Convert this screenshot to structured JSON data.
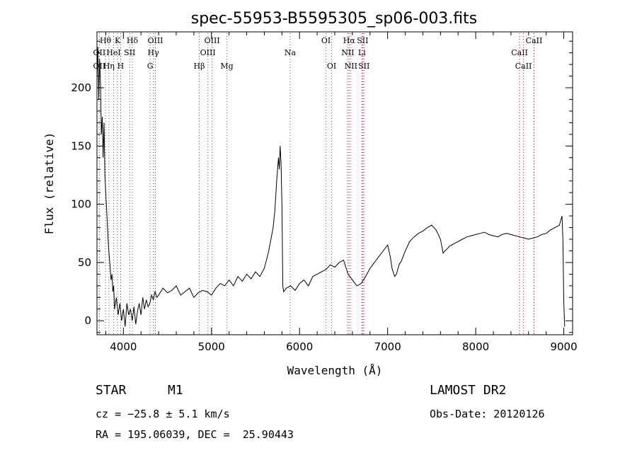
{
  "chart_data": {
    "type": "line",
    "title": "spec-55953-B5595305_sp06-003.fits",
    "xlabel": "Wavelength (Å)",
    "ylabel": "Flux (relative)",
    "xlim": [
      3700,
      9100
    ],
    "ylim": [
      -12,
      248
    ],
    "xticks": [
      4000,
      5000,
      6000,
      7000,
      8000,
      9000
    ],
    "yticks": [
      0,
      50,
      100,
      150,
      200
    ],
    "grid": false,
    "series": [
      {
        "x": [
          3700,
          3710,
          3720,
          3730,
          3740,
          3750,
          3760,
          3770,
          3780,
          3790,
          3800,
          3810,
          3820,
          3830,
          3840,
          3850,
          3860,
          3870,
          3880,
          3890,
          3900,
          3920,
          3940,
          3960,
          3980,
          4000,
          4020,
          4040,
          4060,
          4080,
          4100,
          4120,
          4140,
          4160,
          4180,
          4200,
          4220,
          4240,
          4260,
          4280,
          4300,
          4320,
          4340,
          4360,
          4380,
          4400,
          4450,
          4500,
          4550,
          4600,
          4650,
          4700,
          4750,
          4800,
          4850,
          4900,
          4950,
          5000,
          5050,
          5100,
          5150,
          5200,
          5250,
          5300,
          5350,
          5400,
          5450,
          5500,
          5550,
          5600,
          5650,
          5700,
          5720,
          5740,
          5760,
          5770,
          5780,
          5790,
          5800,
          5810,
          5820,
          5850,
          5900,
          5950,
          6000,
          6050,
          6100,
          6150,
          6200,
          6250,
          6300,
          6350,
          6400,
          6450,
          6500,
          6550,
          6600,
          6650,
          6700,
          6750,
          6800,
          6850,
          6900,
          6950,
          7000,
          7030,
          7050,
          7080,
          7100,
          7130,
          7160,
          7200,
          7250,
          7300,
          7350,
          7400,
          7450,
          7500,
          7550,
          7600,
          7630,
          7650,
          7680,
          7700,
          7750,
          7800,
          7850,
          7900,
          7950,
          8000,
          8050,
          8100,
          8150,
          8200,
          8250,
          8300,
          8350,
          8400,
          8450,
          8500,
          8550,
          8600,
          8650,
          8700,
          8750,
          8800,
          8850,
          8900,
          8950,
          8980,
          8990,
          9000,
          9010
        ],
        "y": [
          210,
          235,
          190,
          225,
          205,
          160,
          175,
          140,
          170,
          125,
          110,
          95,
          80,
          65,
          55,
          45,
          35,
          40,
          25,
          30,
          10,
          20,
          5,
          15,
          0,
          10,
          -5,
          15,
          5,
          10,
          0,
          12,
          -3,
          8,
          15,
          5,
          20,
          10,
          18,
          12,
          15,
          22,
          18,
          25,
          20,
          22,
          28,
          24,
          26,
          30,
          22,
          25,
          28,
          20,
          24,
          26,
          25,
          22,
          28,
          32,
          30,
          35,
          30,
          38,
          34,
          40,
          36,
          42,
          38,
          45,
          60,
          80,
          95,
          120,
          140,
          130,
          150,
          135,
          100,
          30,
          25,
          28,
          30,
          26,
          32,
          35,
          30,
          38,
          40,
          42,
          44,
          48,
          46,
          50,
          52,
          40,
          35,
          30,
          32,
          38,
          45,
          50,
          55,
          60,
          65,
          55,
          45,
          38,
          40,
          48,
          52,
          60,
          68,
          72,
          75,
          77,
          80,
          82,
          78,
          70,
          58,
          60,
          62,
          64,
          66,
          68,
          70,
          72,
          73,
          74,
          75,
          76,
          74,
          73,
          72,
          74,
          75,
          74,
          73,
          72,
          71,
          70,
          71,
          72,
          74,
          75,
          78,
          80,
          82,
          90,
          70,
          15,
          -5
        ],
        "color": "#000000"
      }
    ],
    "spectral_lines": [
      {
        "label": "Hθ",
        "x": 3797,
        "row": 1,
        "color": "#555555"
      },
      {
        "label": "OII",
        "x": 3727,
        "row": 2,
        "color": "#555555"
      },
      {
        "label": "OII",
        "x": 3727,
        "row": 3,
        "color": "#555555"
      },
      {
        "label": "K",
        "x": 3934,
        "row": 1,
        "color": "#555555"
      },
      {
        "label": "HeI",
        "x": 3889,
        "row": 2,
        "color": "#555555"
      },
      {
        "label": "SII",
        "x": 4072,
        "row": 2,
        "color": "#555555"
      },
      {
        "label": "Hη",
        "x": 3835,
        "row": 3,
        "color": "#555555"
      },
      {
        "label": "H",
        "x": 3969,
        "row": 3,
        "color": "#555555"
      },
      {
        "label": "Hδ",
        "x": 4102,
        "row": 1,
        "color": "#555555"
      },
      {
        "label": "OIII",
        "x": 4363,
        "row": 1,
        "color": "#555555"
      },
      {
        "label": "Hγ",
        "x": 4340,
        "row": 2,
        "color": "#555555"
      },
      {
        "label": "G",
        "x": 4304,
        "row": 3,
        "color": "#555555"
      },
      {
        "label": "OIII",
        "x": 5007,
        "row": 1,
        "color": "#555555"
      },
      {
        "label": "OIII",
        "x": 4959,
        "row": 2,
        "color": "#555555"
      },
      {
        "label": "Hβ",
        "x": 4861,
        "row": 3,
        "color": "#555555"
      },
      {
        "label": "Mg",
        "x": 5175,
        "row": 3,
        "color": "#555555"
      },
      {
        "label": "Na",
        "x": 5893,
        "row": 2,
        "color": "#555555"
      },
      {
        "label": "OI",
        "x": 6300,
        "row": 1,
        "color": "#555555"
      },
      {
        "label": "OI",
        "x": 6364,
        "row": 3,
        "color": "#555555"
      },
      {
        "label": "Hα",
        "x": 6563,
        "row": 1,
        "color": "#cc0000"
      },
      {
        "label": "SII",
        "x": 6716,
        "row": 1,
        "color": "#cc0000"
      },
      {
        "label": "NII",
        "x": 6548,
        "row": 2,
        "color": "#555555"
      },
      {
        "label": "Li",
        "x": 6708,
        "row": 2,
        "color": "#cc0000"
      },
      {
        "label": "NII",
        "x": 6583,
        "row": 3,
        "color": "#555555"
      },
      {
        "label": "SII",
        "x": 6731,
        "row": 3,
        "color": "#cc0000"
      },
      {
        "label": "CaII",
        "x": 8662,
        "row": 1,
        "color": "#cc0000"
      },
      {
        "label": "CaII",
        "x": 8498,
        "row": 2,
        "color": "#cc0000"
      },
      {
        "label": "CaII",
        "x": 8542,
        "row": 3,
        "color": "#cc0000"
      }
    ]
  },
  "info": {
    "class": "STAR",
    "subclass": "M1",
    "survey": "LAMOST DR2",
    "cz": "cz = −25.8 ± 5.1 km/s",
    "obs_date": "Obs-Date: 20120126",
    "coords": "RA = 195.06039, DEC =  25.90443"
  }
}
